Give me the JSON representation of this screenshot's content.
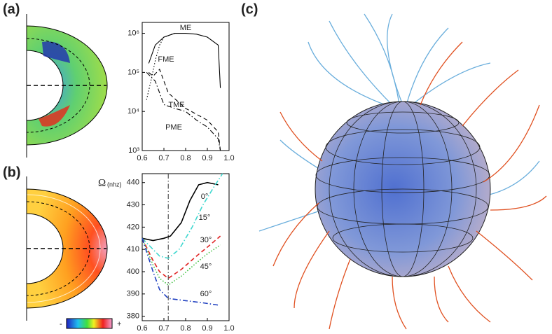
{
  "panel_labels": [
    "(a)",
    "(b)",
    "(c)"
  ],
  "colorbar": {
    "min_label": "-",
    "max_label": "+"
  },
  "chart_data": [
    {
      "type": "line",
      "log_y": true,
      "xlim": [
        0.6,
        1.0
      ],
      "ylim": [
        1000,
        1900000
      ],
      "xticks": [
        0.6,
        0.7,
        0.8,
        0.9,
        {
          "value": 1,
          "label": "1.0"
        }
      ],
      "yticks": [
        {
          "value": 1000,
          "label": "10³"
        },
        {
          "value": 10000,
          "label": "10⁴"
        },
        {
          "value": 100000,
          "label": "10⁵"
        },
        {
          "value": 1000000,
          "label": "10⁶"
        }
      ],
      "series": [
        {
          "name": "ME",
          "color": "#000000",
          "style": "solid",
          "x": [
            0.63,
            0.66,
            0.7,
            0.75,
            0.8,
            0.85,
            0.9,
            0.95,
            0.96
          ],
          "values": [
            170000,
            500000,
            800000,
            1000000,
            1000000,
            950000,
            800000,
            500000,
            40000
          ]
        },
        {
          "name": "FME",
          "color": "#000000",
          "style": "dotted",
          "x": [
            0.62,
            0.64,
            0.66,
            0.68,
            0.7,
            0.75
          ],
          "values": [
            20000,
            60000,
            200000,
            500000,
            800000,
            1000000
          ]
        },
        {
          "name": "TME",
          "color": "#000000",
          "style": "dashed",
          "x": [
            0.63,
            0.65,
            0.68,
            0.72,
            0.8,
            0.9,
            0.95,
            0.96
          ],
          "values": [
            100000,
            80000,
            120000,
            30000,
            12000,
            6000,
            3000,
            1000
          ]
        },
        {
          "name": "PME",
          "color": "#000000",
          "style": "dashdot",
          "x": [
            0.62,
            0.66,
            0.7,
            0.75,
            0.8,
            0.85,
            0.9,
            0.95,
            0.96
          ],
          "values": [
            100000,
            60000,
            15000,
            12000,
            10000,
            6000,
            4000,
            2000,
            1000
          ]
        }
      ]
    },
    {
      "type": "line",
      "ylabel": "Ω",
      "yunit": "(nhz)",
      "xlim": [
        0.6,
        1.0
      ],
      "ylim": [
        378,
        444
      ],
      "xticks": [
        0.6,
        0.7,
        0.8,
        0.9,
        {
          "value": 1,
          "label": "1.0"
        }
      ],
      "yticks": [
        380,
        390,
        400,
        410,
        420,
        430,
        440
      ],
      "reference_x": 0.72,
      "series": [
        {
          "name": "0°",
          "color": "#000000",
          "style": "solid",
          "x": [
            0.6,
            0.65,
            0.7,
            0.73,
            0.78,
            0.82,
            0.86,
            0.9,
            0.95
          ],
          "values": [
            415,
            414,
            415,
            416,
            422,
            432,
            439,
            440,
            439
          ]
        },
        {
          "name": "15°",
          "color": "#40d8d0",
          "style": "dashdot",
          "x": [
            0.6,
            0.65,
            0.68,
            0.72,
            0.77,
            0.83,
            0.88,
            0.93,
            0.97
          ],
          "values": [
            415,
            410,
            407,
            406,
            410,
            420,
            430,
            438,
            444
          ]
        },
        {
          "name": "30°",
          "color": "#e02020",
          "style": "dashed",
          "x": [
            0.6,
            0.65,
            0.68,
            0.72,
            0.78,
            0.85,
            0.9,
            0.96
          ],
          "values": [
            415,
            405,
            400,
            397,
            401,
            407,
            411,
            416
          ]
        },
        {
          "name": "45°",
          "color": "#40c040",
          "style": "dotted",
          "x": [
            0.6,
            0.65,
            0.68,
            0.72,
            0.78,
            0.85,
            0.9,
            0.96
          ],
          "values": [
            415,
            403,
            397,
            394,
            398,
            404,
            408,
            412
          ]
        },
        {
          "name": "60°",
          "color": "#2040c0",
          "style": "dashdot",
          "x": [
            0.6,
            0.65,
            0.68,
            0.72,
            0.8,
            0.88,
            0.95
          ],
          "values": [
            415,
            400,
            392,
            388,
            387,
            386,
            385
          ]
        }
      ]
    }
  ]
}
